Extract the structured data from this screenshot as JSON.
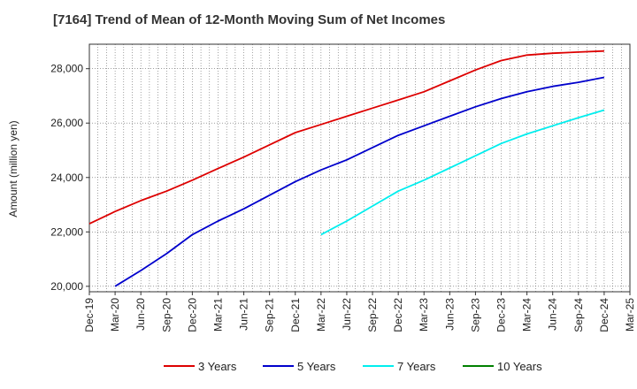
{
  "chart_data": {
    "type": "line",
    "title": "[7164]  Trend of Mean of 12-Month Moving Sum of Net Incomes",
    "ylabel": "Amount (million yen)",
    "xlabel": "",
    "x_ticks": [
      "Dec-19",
      "Mar-20",
      "Jun-20",
      "Sep-20",
      "Dec-20",
      "Mar-21",
      "Jun-21",
      "Sep-21",
      "Dec-21",
      "Mar-22",
      "Jun-22",
      "Sep-22",
      "Dec-22",
      "Mar-23",
      "Jun-23",
      "Sep-23",
      "Dec-23",
      "Mar-24",
      "Jun-24",
      "Sep-24",
      "Dec-24",
      "Mar-25"
    ],
    "y_ticks": [
      20000,
      22000,
      24000,
      26000,
      28000
    ],
    "y_tick_labels": [
      "20,000",
      "22,000",
      "24,000",
      "26,000",
      "28,000"
    ],
    "ylim": [
      19800,
      28900
    ],
    "grid": true,
    "legend_position": "bottom",
    "series": [
      {
        "name": "3 Years",
        "color": "#dd0000",
        "x": [
          "Dec-19",
          "Mar-20",
          "Jun-20",
          "Sep-20",
          "Dec-20",
          "Mar-21",
          "Jun-21",
          "Sep-21",
          "Dec-21",
          "Mar-22",
          "Jun-22",
          "Sep-22",
          "Dec-22",
          "Mar-23",
          "Jun-23",
          "Sep-23",
          "Dec-23",
          "Mar-24",
          "Jun-24",
          "Sep-24",
          "Dec-24"
        ],
        "values": [
          22300,
          22750,
          23150,
          23500,
          23900,
          24330,
          24750,
          25200,
          25650,
          25950,
          26250,
          26550,
          26850,
          27150,
          27550,
          27950,
          28300,
          28500,
          28570,
          28610,
          28650
        ]
      },
      {
        "name": "5 Years",
        "color": "#0000cc",
        "x": [
          "Mar-20",
          "Jun-20",
          "Sep-20",
          "Dec-20",
          "Mar-21",
          "Jun-21",
          "Sep-21",
          "Dec-21",
          "Mar-22",
          "Jun-22",
          "Sep-22",
          "Dec-22",
          "Mar-23",
          "Jun-23",
          "Sep-23",
          "Dec-23",
          "Mar-24",
          "Jun-24",
          "Sep-24",
          "Dec-24"
        ],
        "values": [
          20000,
          20580,
          21200,
          21900,
          22400,
          22850,
          23350,
          23850,
          24280,
          24650,
          25100,
          25550,
          25900,
          26250,
          26600,
          26900,
          27150,
          27350,
          27500,
          27680
        ]
      },
      {
        "name": "7 Years",
        "color": "#00eeee",
        "x": [
          "Mar-22",
          "Jun-22",
          "Sep-22",
          "Dec-22",
          "Mar-23",
          "Jun-23",
          "Sep-23",
          "Dec-23",
          "Mar-24",
          "Jun-24",
          "Sep-24",
          "Dec-24"
        ],
        "values": [
          21900,
          22400,
          22950,
          23500,
          23900,
          24350,
          24800,
          25250,
          25600,
          25900,
          26200,
          26480
        ]
      },
      {
        "name": "10 Years",
        "color": "#008000",
        "x": [],
        "values": []
      }
    ]
  }
}
